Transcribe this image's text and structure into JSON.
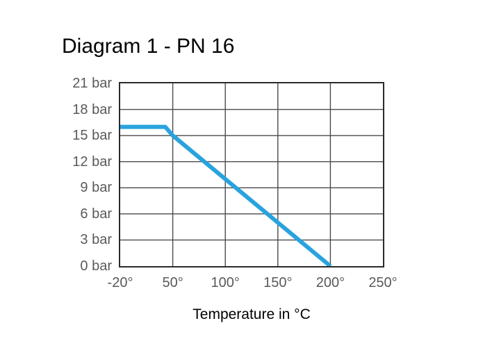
{
  "colors": {
    "line": "#29a3de",
    "grid": "#4a4a4a",
    "border": "#2a2a2a",
    "tick_text": "#58595b",
    "title_text": "#000000",
    "background": "#ffffff"
  },
  "chart_data": {
    "type": "line",
    "title": "Diagram 1 - PN 16",
    "xlabel": "Temperature in °C",
    "ylabel": "",
    "x_ticks": [
      -20,
      50,
      100,
      150,
      200,
      250
    ],
    "x_tick_labels": [
      "-20°",
      "50°",
      "100°",
      "150°",
      "200°",
      "250°"
    ],
    "y_ticks": [
      21,
      18,
      15,
      12,
      9,
      6,
      3,
      0
    ],
    "y_tick_labels": [
      "21 bar",
      "18 bar",
      "15 bar",
      "12 bar",
      "9 bar",
      "6 bar",
      "3 bar",
      "0 bar"
    ],
    "xlim": [
      -20,
      250
    ],
    "ylim": [
      0,
      21
    ],
    "grid": true,
    "legend": false,
    "series": [
      {
        "name": "PN 16",
        "color": "#29a3de",
        "points": [
          [
            -20,
            16
          ],
          [
            40,
            16
          ],
          [
            50,
            15
          ],
          [
            200,
            0
          ]
        ]
      }
    ]
  }
}
